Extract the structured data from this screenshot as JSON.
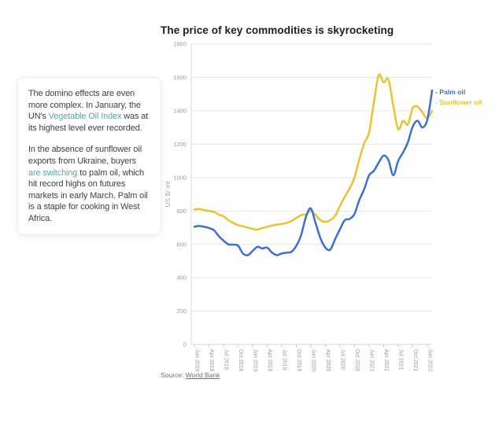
{
  "title": "The price of key commodities is skyrocketing",
  "note_card": {
    "paragraphs": [
      {
        "segments": [
          {
            "text": "The domino effects are even more complex. In January, the UN's "
          },
          {
            "text": "Vegetable Oil Index",
            "link": true
          },
          {
            "text": " was at its highest level ever recorded."
          }
        ]
      },
      {
        "segments": [
          {
            "text": "In the absence of sunflower oil exports from Ukraine, buyers "
          },
          {
            "text": "are switching",
            "link": true
          },
          {
            "text": " to palm oil, which hit record highs on futures markets in early March. Palm oil is a staple for cooking in West Africa."
          }
        ]
      }
    ]
  },
  "chart_data": {
    "type": "line",
    "title": "The price of key commodities is skyrocketing",
    "xlabel": "",
    "ylabel": "US $/ mt",
    "ylim": [
      0,
      1800
    ],
    "ytick_step": 200,
    "grid": true,
    "legend_position": "right",
    "x": [
      "Jan 2018",
      "Feb 2018",
      "Mar 2018",
      "Apr 2018",
      "May 2018",
      "Jun 2018",
      "Jul 2018",
      "Aug 2018",
      "Sep 2018",
      "Oct 2018",
      "Nov 2018",
      "Dec 2018",
      "Jan 2019",
      "Feb 2019",
      "Mar 2019",
      "Apr 2019",
      "May 2019",
      "Jun 2019",
      "Jul 2019",
      "Aug 2019",
      "Sep 2019",
      "Oct 2019",
      "Nov 2019",
      "Dec 2019",
      "Jan 2020",
      "Feb 2020",
      "Mar 2020",
      "Apr 2020",
      "May 2020",
      "Jun 2020",
      "Jul 2020",
      "Aug 2020",
      "Sep 2020",
      "Oct 2020",
      "Nov 2020",
      "Dec 2020",
      "Jan 2021",
      "Feb 2021",
      "Mar 2021",
      "Apr 2021",
      "May 2021",
      "Jun 2021",
      "Jul 2021",
      "Aug 2021",
      "Sep 2021",
      "Oct 2021",
      "Nov 2021",
      "Dec 2021",
      "Jan 2022",
      "Feb 2022"
    ],
    "xtick_labels": [
      "Jan 2018",
      "Apr 2018",
      "Jul 2018",
      "Oct 2018",
      "Jan 2019",
      "Apr 2019",
      "Jul 2019",
      "Oct 2019",
      "Jan 2020",
      "Apr 2020",
      "Jul 2020",
      "Oct 2020",
      "Jan 2021",
      "Apr 2021",
      "Jul 2021",
      "Oct 2021",
      "Jan 2022"
    ],
    "xtick_every": 3,
    "series": [
      {
        "name": "Sunflower oil",
        "color": "#e9c32f",
        "marker": "-",
        "values": [
          808,
          812,
          805,
          800,
          795,
          778,
          768,
          745,
          728,
          715,
          708,
          700,
          692,
          688,
          698,
          705,
          712,
          718,
          722,
          728,
          740,
          758,
          775,
          780,
          800,
          775,
          745,
          735,
          745,
          770,
          830,
          885,
          935,
          1000,
          1110,
          1205,
          1270,
          1450,
          1615,
          1570,
          1588,
          1430,
          1290,
          1340,
          1318,
          1415,
          1425,
          1390,
          1355,
          1400
        ]
      },
      {
        "name": "Palm oil",
        "color": "#3e6dd8",
        "marker": "-",
        "values": [
          705,
          710,
          705,
          698,
          685,
          650,
          622,
          600,
          598,
          592,
          545,
          535,
          560,
          585,
          575,
          580,
          550,
          535,
          545,
          550,
          555,
          590,
          655,
          765,
          815,
          725,
          635,
          580,
          568,
          630,
          690,
          745,
          752,
          782,
          866,
          930,
          1013,
          1040,
          1090,
          1132,
          1105,
          1013,
          1100,
          1150,
          1211,
          1305,
          1340,
          1300,
          1345,
          1522
        ]
      }
    ],
    "yticks": [
      0,
      200,
      400,
      600,
      800,
      1000,
      1200,
      1400,
      1600,
      1800
    ]
  },
  "legend": {
    "items": [
      {
        "marker": "-",
        "label": "Palm oil",
        "color": "#3e6dd8"
      },
      {
        "marker": "-",
        "label": "Sunflower oil",
        "color": "#e9c32f"
      }
    ]
  },
  "source": {
    "label_prefix": "Source: ",
    "link_text": "World Bank"
  },
  "colors": {
    "palm_oil": "#3e6dd8",
    "sunflower_oil": "#e9c32f",
    "link_teal": "#56a7a2",
    "grid": "#e6e6e6",
    "axis_text": "#9b9b9b"
  }
}
